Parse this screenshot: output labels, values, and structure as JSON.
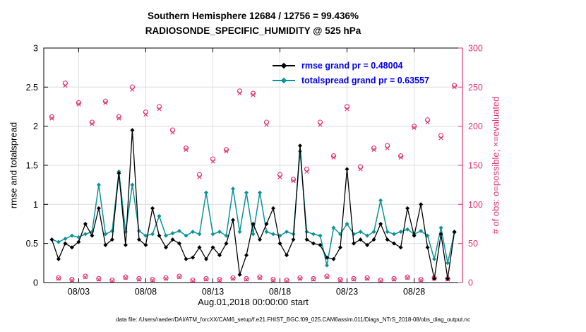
{
  "title": {
    "line1": "Southern Hemisphere 12684 / 12756 = 99.436%",
    "line2": "RADIOSONDE_SPECIFIC_HUMIDITY @ 525 hPa"
  },
  "legend": {
    "rmse_label": "rmse grand pr = 0.48004",
    "totalspread_label": "totalspread grand pr = 0.63557"
  },
  "axes": {
    "ylabel_left": "rmse and totalspread",
    "ylabel_right": "# of obs: o=possible; ×=evaluated",
    "xlabel": "Aug.01,2018 00:00:00 start"
  },
  "caption": "data file: /Users/raeder/DAI/ATM_forcXX/CAM6_setup/f.e21.FHIST_BGC.f09_025.CAM6assim.011/Diags_NTrS_2018-08/obs_diag_output.nc",
  "colors": {
    "rmse": "#000000",
    "totalspread": "#0b9398",
    "obs": "#e0346f",
    "legend_text": "#0000ee",
    "grid": "#dcdcdc"
  },
  "chart_data": {
    "type": "line",
    "title": "Southern Hemisphere 12684 / 12756 = 99.436% | RADIOSONDE_SPECIFIC_HUMIDITY @ 525 hPa",
    "x_start_day": 0,
    "x_step_days": 0.5,
    "x_axis_note": "days since Aug.01,2018 00:00:00, twice-daily bins",
    "xlim": [
      -0.6,
      30.6
    ],
    "ylim_left": [
      0,
      3
    ],
    "ylim_right": [
      0,
      300
    ],
    "xticks": [
      2,
      7,
      12,
      17,
      22,
      27
    ],
    "xtick_labels": [
      "08/03",
      "08/08",
      "08/13",
      "08/18",
      "08/23",
      "08/28"
    ],
    "yticks_left": [
      0,
      0.5,
      1,
      1.5,
      2,
      2.5,
      3
    ],
    "ytick_labels_left": [
      "0",
      "0.5",
      "1",
      "1.5",
      "2",
      "2.5",
      "3"
    ],
    "yticks_right": [
      0,
      50,
      100,
      150,
      200,
      250,
      300
    ],
    "grid": true,
    "legend_position": "top-center-inside",
    "series": [
      {
        "name": "rmse",
        "axis": "left",
        "marker": "diamond",
        "values": [
          0.55,
          0.3,
          0.5,
          0.45,
          0.52,
          0.75,
          0.6,
          0.95,
          0.48,
          0.55,
          1.4,
          0.48,
          1.95,
          0.55,
          0.48,
          0.95,
          0.6,
          0.45,
          0.55,
          0.5,
          0.3,
          0.32,
          0.45,
          0.3,
          0.45,
          0.35,
          0.5,
          0.8,
          0.1,
          0.35,
          0.75,
          0.55,
          0.75,
          0.95,
          0.5,
          0.35,
          0.55,
          1.75,
          0.55,
          0.5,
          0.48,
          0.32,
          0.3,
          0.45,
          1.45,
          0.5,
          0.55,
          0.48,
          0.55,
          0.75,
          0.55,
          0.5,
          0.45,
          0.95,
          0.6,
          1.0,
          0.45,
          0.05,
          0.62,
          0.05,
          0.65
        ]
      },
      {
        "name": "totalspread",
        "axis": "left",
        "marker": "diamond",
        "values": [
          0.55,
          0.52,
          0.56,
          0.6,
          0.58,
          0.62,
          0.65,
          1.25,
          0.62,
          0.66,
          1.42,
          0.65,
          1.25,
          0.66,
          0.6,
          0.62,
          0.85,
          0.6,
          0.63,
          0.66,
          0.6,
          0.65,
          0.62,
          1.15,
          0.62,
          0.65,
          0.6,
          1.2,
          0.65,
          1.15,
          0.62,
          1.15,
          0.65,
          0.62,
          0.6,
          0.65,
          0.62,
          1.68,
          0.65,
          0.62,
          0.6,
          0.22,
          0.7,
          0.62,
          0.75,
          0.62,
          0.65,
          0.6,
          0.65,
          1.05,
          0.65,
          0.62,
          0.65,
          0.68,
          0.62,
          0.66,
          0.6,
          0.3,
          0.7,
          0.25,
          0.64
        ]
      },
      {
        "name": "possible",
        "axis": "right",
        "marker": "circle",
        "values": [
          212,
          6,
          255,
          4,
          230,
          8,
          205,
          5,
          232,
          3,
          212,
          7,
          250,
          5,
          218,
          4,
          225,
          6,
          195,
          8,
          172,
          3,
          138,
          5,
          158,
          4,
          170,
          6,
          245,
          5,
          242,
          7,
          205,
          4,
          138,
          3,
          132,
          6,
          145,
          5,
          205,
          8,
          162,
          4,
          225,
          5,
          148,
          6,
          172,
          3,
          175,
          5,
          162,
          7,
          200,
          4,
          208,
          6,
          188,
          5,
          252
        ]
      },
      {
        "name": "evaluated",
        "axis": "right",
        "marker": "x",
        "values": [
          210,
          5,
          252,
          3,
          228,
          7,
          203,
          4,
          230,
          2,
          210,
          6,
          247,
          4,
          215,
          3,
          222,
          5,
          192,
          7,
          170,
          2,
          135,
          4,
          155,
          3,
          168,
          5,
          242,
          4,
          240,
          6,
          202,
          3,
          135,
          2,
          130,
          5,
          142,
          4,
          202,
          7,
          160,
          3,
          222,
          4,
          145,
          5,
          170,
          2,
          172,
          4,
          160,
          6,
          198,
          3,
          205,
          5,
          185,
          4,
          250
        ]
      }
    ]
  }
}
